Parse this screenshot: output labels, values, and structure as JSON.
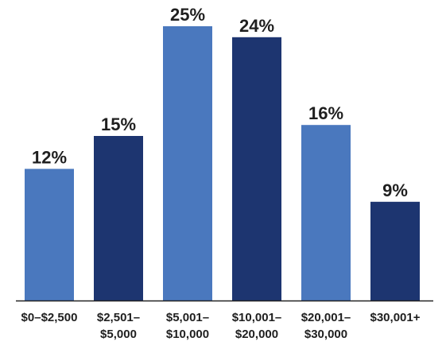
{
  "chart_data": {
    "type": "bar",
    "categories": [
      [
        "$0–$2,500"
      ],
      [
        "$2,501–",
        "$5,000"
      ],
      [
        "$5,001–",
        "$10,000"
      ],
      [
        "$10,001–",
        "$20,000"
      ],
      [
        "$20,001–",
        "$30,000"
      ],
      [
        "$30,001+"
      ]
    ],
    "values": [
      12,
      15,
      25,
      24,
      16,
      9
    ],
    "value_labels": [
      "12%",
      "15%",
      "25%",
      "24%",
      "16%",
      "9%"
    ],
    "bar_colors": [
      "#4a78be",
      "#1d3570",
      "#4a78be",
      "#1d3570",
      "#4a78be",
      "#1d3570"
    ],
    "axis_color": "#222222",
    "ylim": [
      0,
      25
    ],
    "grid": false,
    "legend": false,
    "title": "",
    "xlabel": "",
    "ylabel": ""
  }
}
